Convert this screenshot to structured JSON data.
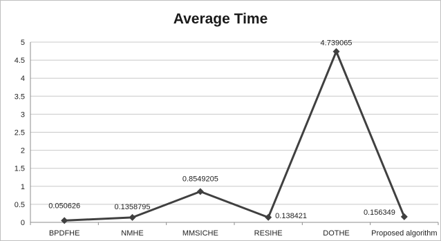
{
  "chart_data": {
    "type": "line",
    "title": "Average Time",
    "xlabel": "",
    "ylabel": "",
    "categories": [
      "BPDFHE",
      "NMHE",
      "MMSICHE",
      "RESIHE",
      "DOTHE",
      "Proposed algorithm"
    ],
    "series": [
      {
        "values": [
          0.050626,
          0.1358795,
          0.8549205,
          0.138421,
          4.739065,
          0.156349
        ]
      }
    ],
    "data_labels": [
      "0.050626",
      "0.1358795",
      "0.8549205",
      "0.138421",
      "4.739065",
      "0.156349"
    ],
    "y_ticks": [
      "0",
      "0.5",
      "1",
      "1.5",
      "2",
      "2.5",
      "3",
      "3.5",
      "4",
      "4.5",
      "5"
    ],
    "ylim": [
      0,
      5
    ],
    "grid": true,
    "legend": "none",
    "colors": {
      "line": "#404040",
      "marker": "#404040",
      "grid": "#c8c8c8",
      "axis": "#8c8c8c"
    }
  }
}
